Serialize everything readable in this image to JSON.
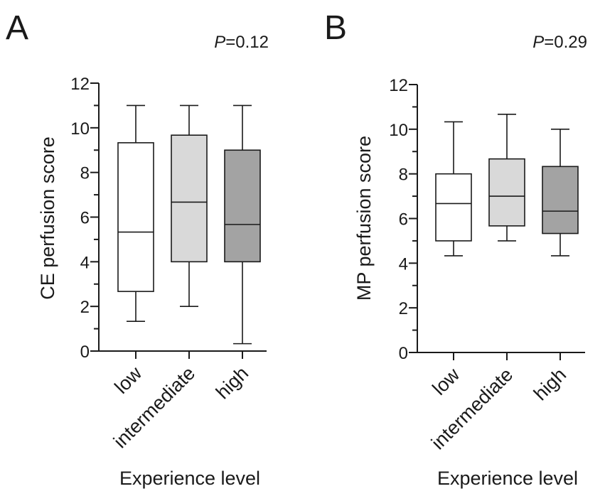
{
  "chart_data": [
    {
      "type": "box",
      "panel_label": "A",
      "p_value": {
        "prefix": "P",
        "text": "=0.12"
      },
      "ylabel": "CE perfusion score",
      "xlabel": "Experience level",
      "ylim": [
        0,
        12
      ],
      "yticks": [
        "0",
        "2",
        "4",
        "6",
        "8",
        "10",
        "12"
      ],
      "categories": [
        "low",
        "intermediate",
        "high"
      ],
      "fill_colors": [
        "#ffffff",
        "#d9d9d9",
        "#a3a3a3"
      ],
      "boxes": [
        {
          "category": "low",
          "min": 1.33,
          "q1": 2.67,
          "median": 5.33,
          "q3": 9.33,
          "max": 11.0
        },
        {
          "category": "intermediate",
          "min": 2.0,
          "q1": 4.0,
          "median": 6.67,
          "q3": 9.67,
          "max": 11.0
        },
        {
          "category": "high",
          "min": 0.33,
          "q1": 4.0,
          "median": 5.67,
          "q3": 9.0,
          "max": 11.0
        }
      ]
    },
    {
      "type": "box",
      "panel_label": "B",
      "p_value": {
        "prefix": "P",
        "text": "=0.29"
      },
      "ylabel": "MP perfusion score",
      "xlabel": "Experience level",
      "ylim": [
        0,
        12
      ],
      "yticks": [
        "0",
        "2",
        "4",
        "6",
        "8",
        "10",
        "12"
      ],
      "categories": [
        "low",
        "intermediate",
        "high"
      ],
      "fill_colors": [
        "#ffffff",
        "#d9d9d9",
        "#a3a3a3"
      ],
      "boxes": [
        {
          "category": "low",
          "min": 4.33,
          "q1": 5.0,
          "median": 6.67,
          "q3": 8.0,
          "max": 10.33
        },
        {
          "category": "intermediate",
          "min": 5.0,
          "q1": 5.67,
          "median": 7.0,
          "q3": 8.67,
          "max": 10.67
        },
        {
          "category": "high",
          "min": 4.33,
          "q1": 5.33,
          "median": 6.33,
          "q3": 8.33,
          "max": 10.0
        }
      ]
    }
  ]
}
